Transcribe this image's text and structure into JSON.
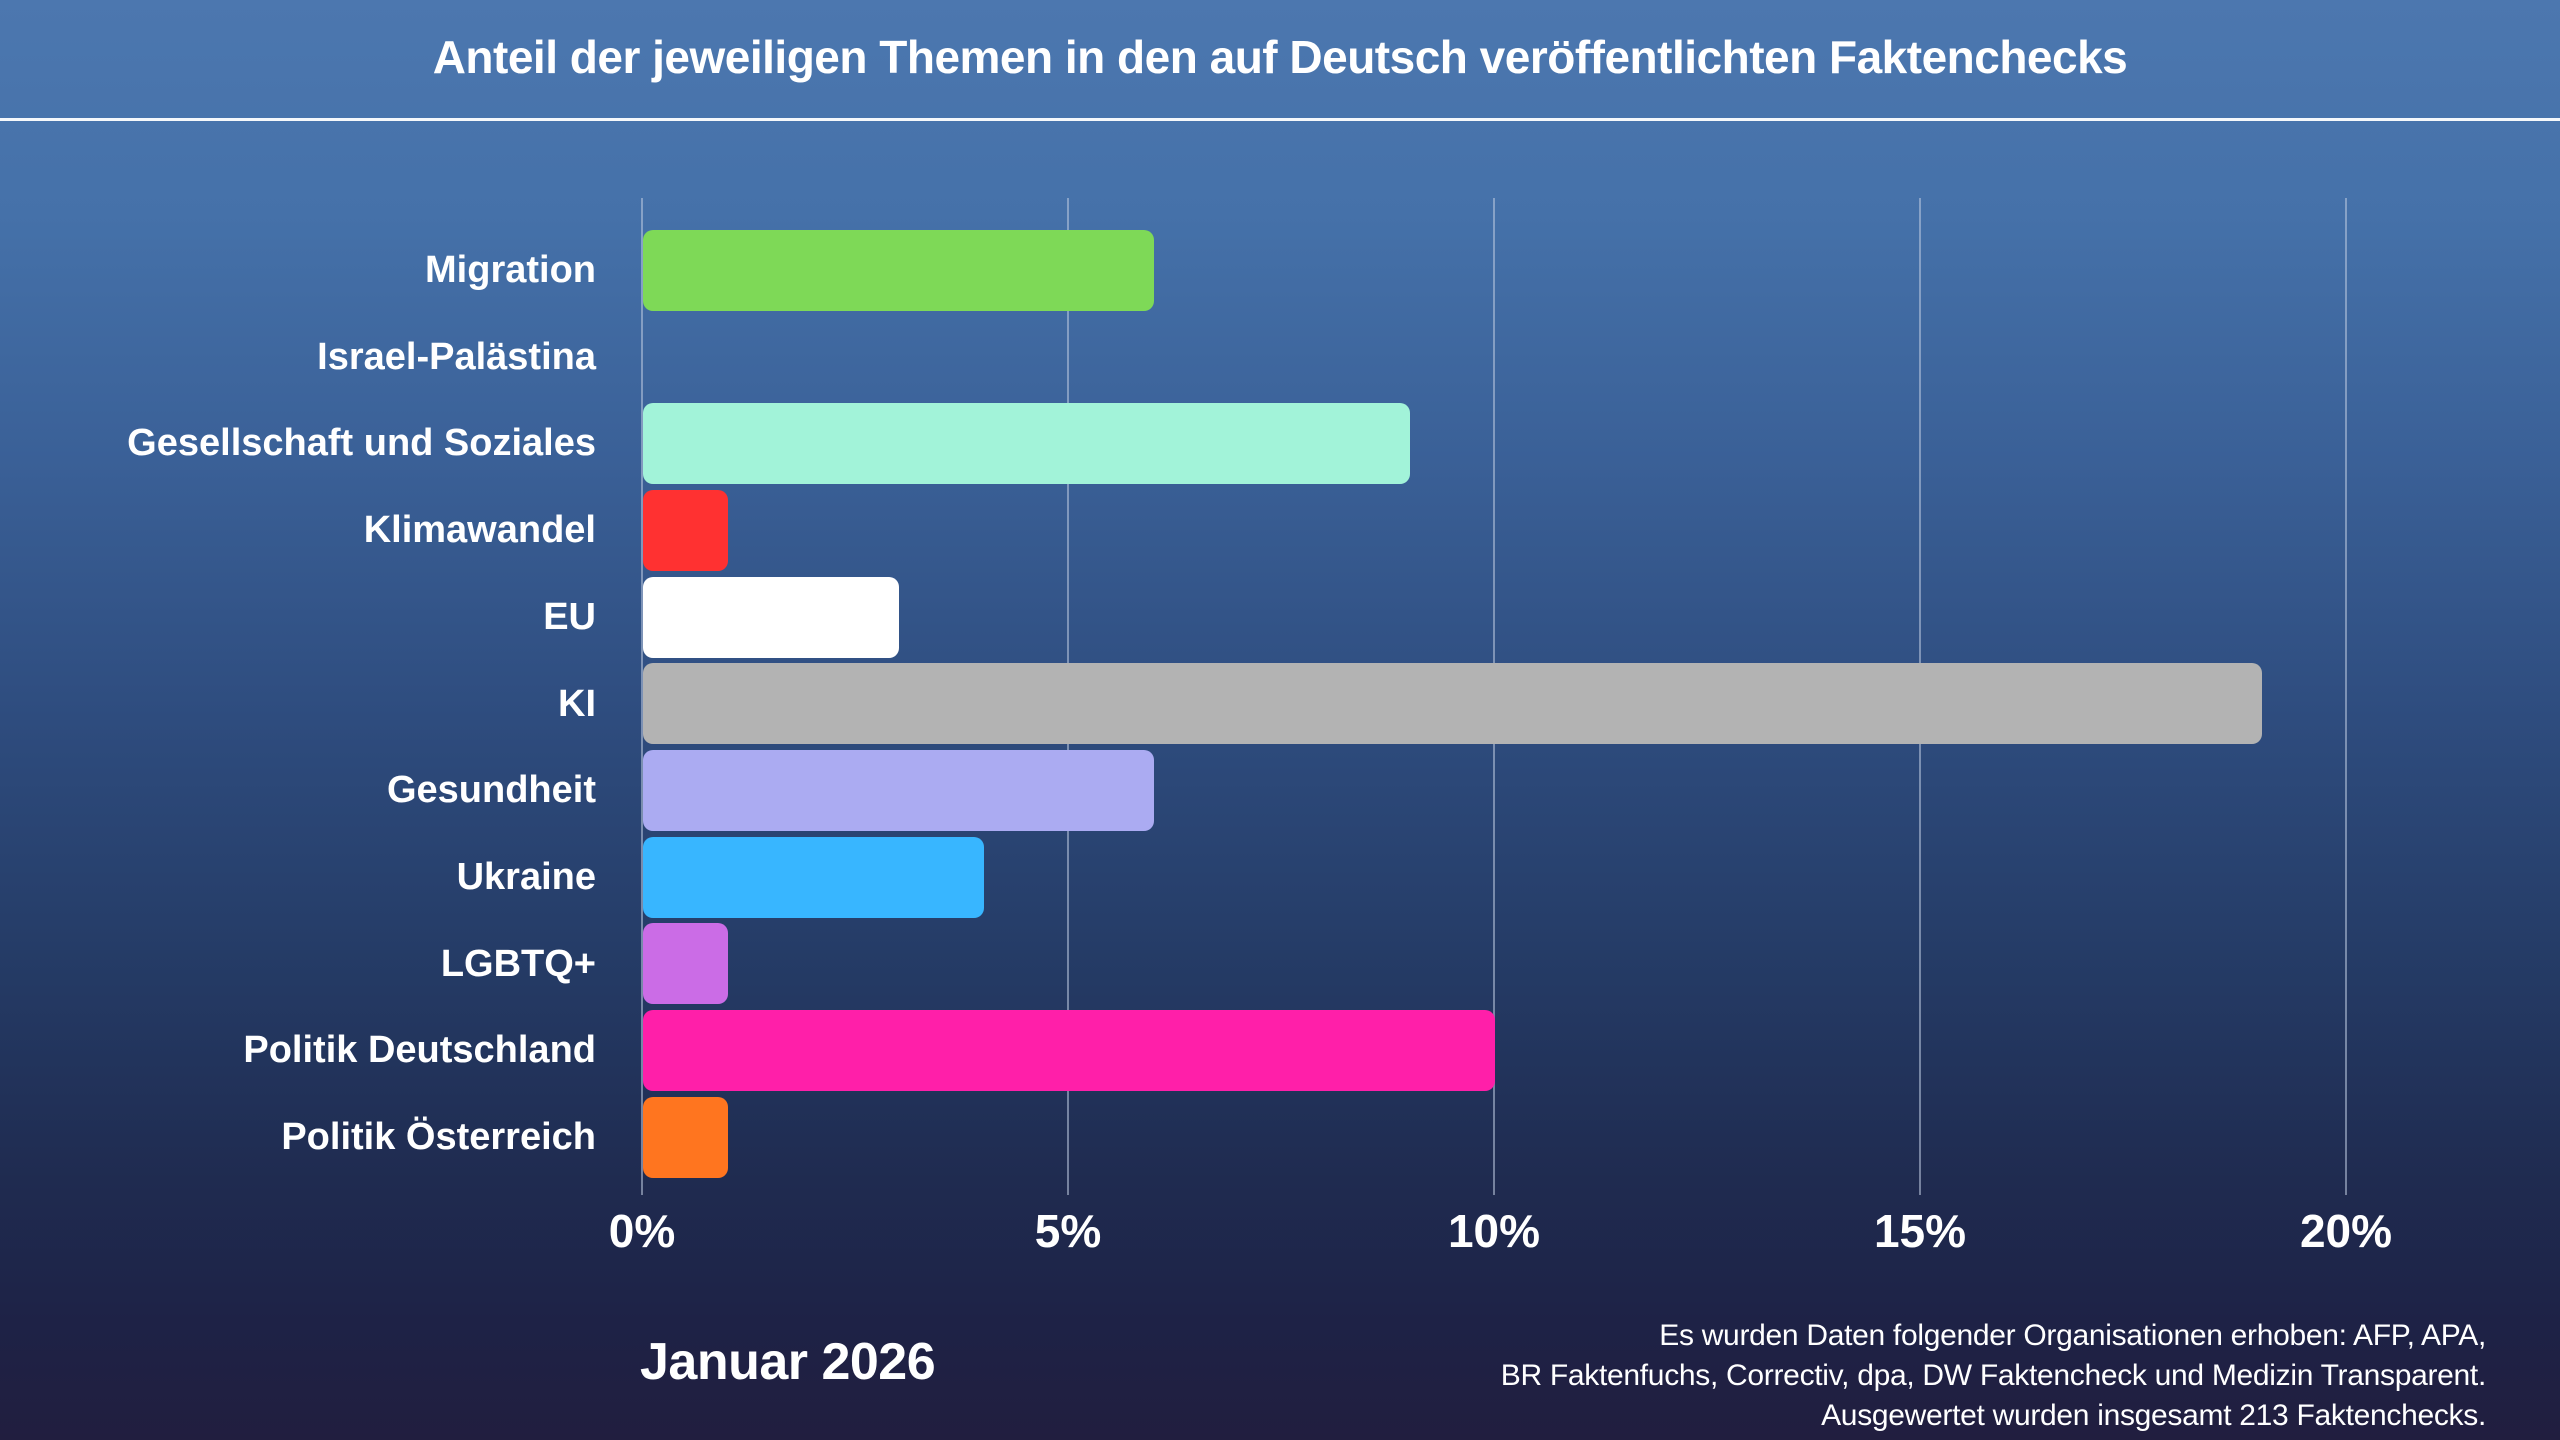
{
  "header": {
    "title": "Anteil der jeweiligen Themen in den auf Deutsch veröffentlichten Faktenchecks"
  },
  "chart_data": {
    "type": "bar",
    "orientation": "horizontal",
    "title": "Anteil der jeweiligen Themen in den auf Deutsch veröffentlichten Faktenchecks",
    "categories": [
      "Migration",
      "Israel-Palästina",
      "Gesellschaft und Soziales",
      "Klimawandel",
      "EU",
      "KI",
      "Gesundheit",
      "Ukraine",
      "LGBTQ+",
      "Politik Deutschland",
      "Politik Österreich"
    ],
    "values": [
      6,
      0,
      9,
      1,
      3,
      19,
      6,
      4,
      1,
      10,
      1
    ],
    "unit": "%",
    "bar_colors": [
      "#7ED957",
      null,
      "#A2F3D9",
      "#FF3131",
      "#FFFFFF",
      "#B3B3B3",
      "#ABABF2",
      "#38B6FF",
      "#CB6CE6",
      "#FF1FA9",
      "#FF751F"
    ],
    "x_tick_labels": [
      "0%",
      "5%",
      "10%",
      "15%",
      "20%"
    ],
    "x_tick_values": [
      0,
      5,
      10,
      15,
      20
    ],
    "xlim": [
      0,
      22.5
    ],
    "grid": true,
    "legend": false
  },
  "footer": {
    "date_label": "Januar 2026",
    "source_lines": [
      "Es wurden Daten folgender Organisationen erhoben: AFP, APA,",
      "BR Faktenfuchs, Correctiv, dpa, DW Faktencheck und Medizin Transparent.",
      "Ausgewertet wurden insgesamt 213 Faktenchecks."
    ]
  },
  "colors": {
    "background_top": "#4C77AF",
    "background_bottom": "#211E3F",
    "text": "#FFFFFF",
    "gridline": "#BECBE0"
  }
}
